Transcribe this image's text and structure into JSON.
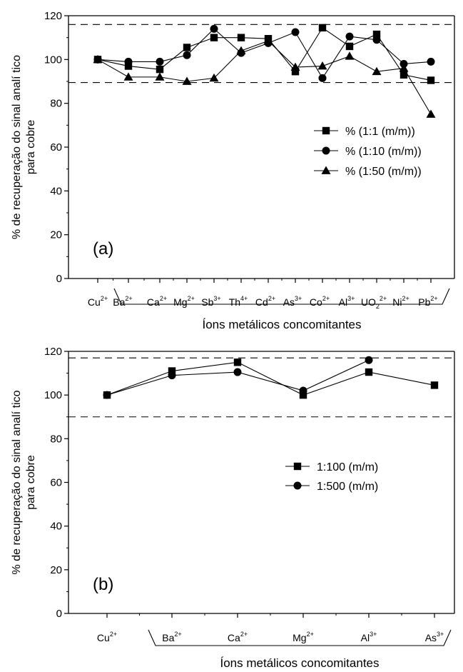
{
  "chart_data": [
    {
      "type": "line",
      "panel_label": "(a)",
      "ylabel": "% de recuperação do sinal analí tico para cobre",
      "xlabel": "Íons metálicos concomitantes",
      "ylim": [
        0,
        120
      ],
      "yticks": [
        0,
        20,
        40,
        60,
        80,
        100,
        120
      ],
      "reference_lines": [
        116,
        89.5
      ],
      "categories": [
        {
          "base": "Cu",
          "sup": "2+"
        },
        {
          "base": "Ba",
          "sup": "2+"
        },
        {
          "base": "Ca",
          "sup": "2+"
        },
        {
          "base": "Mg",
          "sup": "2+"
        },
        {
          "base": "Sb",
          "sup": "3+"
        },
        {
          "base": "Th",
          "sup": "4+"
        },
        {
          "base": "Cd",
          "sup": "2+"
        },
        {
          "base": "As",
          "sup": "3+"
        },
        {
          "base": "Co",
          "sup": "2+"
        },
        {
          "base": "Al",
          "sup": "3+"
        },
        {
          "base": "UO",
          "sub": "2",
          "sup": "2+"
        },
        {
          "base": "Ni",
          "sup": "2+"
        },
        {
          "base": "Pb",
          "sup": "2+"
        }
      ],
      "legend_position": "center-right",
      "series": [
        {
          "name": "% (1:1 (m/m))",
          "marker": "square",
          "values": [
            100,
            97,
            95.5,
            105.5,
            110,
            110,
            109.5,
            94.5,
            114.5,
            106,
            111.5,
            93,
            90.5
          ]
        },
        {
          "name": "% (1:10 (m/m))",
          "marker": "circle",
          "values": [
            100,
            99,
            99,
            102,
            114,
            103,
            107.5,
            112.5,
            91.5,
            110.5,
            109,
            98,
            99
          ]
        },
        {
          "name": "% (1:50 (m/m))",
          "marker": "triangle",
          "values": [
            100,
            92,
            92,
            90,
            91.5,
            104,
            108.5,
            96.5,
            97,
            101.5,
            94.5,
            96,
            75
          ]
        }
      ]
    },
    {
      "type": "line",
      "panel_label": "(b)",
      "ylabel": "% de recuperação do sinal analí tico para cobre",
      "xlabel": "Íons metálicos concomitantes",
      "ylim": [
        0,
        120
      ],
      "yticks": [
        0,
        20,
        40,
        60,
        80,
        100,
        120
      ],
      "reference_lines": [
        117,
        90
      ],
      "categories": [
        {
          "base": "Cu",
          "sup": "2+"
        },
        {
          "base": "Ba",
          "sup": "2+"
        },
        {
          "base": "Ca",
          "sup": "2+"
        },
        {
          "base": "Mg",
          "sup": "2+"
        },
        {
          "base": "Al",
          "sup": "3+"
        },
        {
          "base": "As",
          "sup": "3+"
        }
      ],
      "legend_position": "center-right",
      "series": [
        {
          "name": "1:100 (m/m)",
          "marker": "square",
          "values": [
            100,
            111,
            115,
            100,
            110.5,
            104.5
          ]
        },
        {
          "name": "1:500 (m/m)",
          "marker": "circle",
          "values": [
            100,
            109,
            110.5,
            102,
            116,
            null
          ]
        }
      ]
    }
  ]
}
